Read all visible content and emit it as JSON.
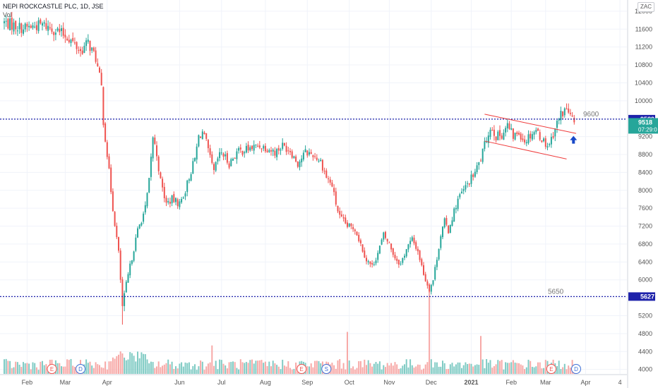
{
  "header": {
    "symbol_line": "NEPI ROCKCASTLE PLC, 1D, JSE",
    "volume_label": "Vol",
    "currency": "ZAC"
  },
  "colors": {
    "up": "#26a69a",
    "down": "#ef5350",
    "up_volume": "#80cbc4",
    "down_volume": "#f7a9a7",
    "level_line": "#1e22aa",
    "channel": "#ef3b3b",
    "arrow": "#1848c8"
  },
  "chart_data": {
    "type": "candlestick",
    "ylim": [
      3900,
      12250
    ],
    "y_ticks": [
      4000,
      4400,
      4800,
      5200,
      5600,
      6000,
      6400,
      6800,
      7200,
      7600,
      8000,
      8400,
      8800,
      9200,
      9600,
      10000,
      10400,
      10800,
      11200,
      11600,
      12000
    ],
    "x_tick_labels": [
      "Feb",
      "Mar",
      "Apr",
      "Jun",
      "Jul",
      "Aug",
      "Sep",
      "Oct",
      "Nov",
      "Dec",
      "2021",
      "Feb",
      "Mar",
      "Apr",
      "4"
    ],
    "price_path": [
      [
        0,
        11750
      ],
      [
        10,
        11620
      ],
      [
        20,
        11700
      ],
      [
        28,
        11560
      ],
      [
        34,
        11400
      ],
      [
        40,
        11100
      ],
      [
        44,
        11300
      ],
      [
        48,
        10950
      ],
      [
        51,
        10300
      ],
      [
        52,
        9550
      ],
      [
        54,
        8800
      ],
      [
        57,
        7600
      ],
      [
        60,
        6600
      ],
      [
        62,
        5400
      ],
      [
        64,
        5900
      ],
      [
        66,
        6300
      ],
      [
        70,
        7100
      ],
      [
        74,
        7600
      ],
      [
        76,
        8200
      ],
      [
        78,
        9200
      ],
      [
        80,
        8800
      ],
      [
        82,
        8200
      ],
      [
        85,
        7700
      ],
      [
        88,
        7800
      ],
      [
        92,
        7700
      ],
      [
        95,
        8000
      ],
      [
        97,
        8300
      ],
      [
        100,
        8700
      ],
      [
        102,
        9200
      ],
      [
        104,
        9300
      ],
      [
        106,
        9050
      ],
      [
        108,
        8700
      ],
      [
        110,
        8400
      ],
      [
        112,
        8700
      ],
      [
        114,
        8850
      ],
      [
        118,
        8600
      ],
      [
        122,
        8850
      ],
      [
        126,
        8900
      ],
      [
        130,
        8950
      ],
      [
        134,
        9000
      ],
      [
        138,
        8950
      ],
      [
        142,
        8850
      ],
      [
        146,
        9000
      ],
      [
        150,
        8900
      ],
      [
        154,
        8600
      ],
      [
        158,
        8850
      ],
      [
        162,
        8800
      ],
      [
        166,
        8650
      ],
      [
        169,
        8300
      ],
      [
        172,
        8100
      ],
      [
        174,
        7700
      ],
      [
        176,
        7400
      ],
      [
        180,
        7200
      ],
      [
        184,
        7150
      ],
      [
        187,
        6800
      ],
      [
        190,
        6450
      ],
      [
        193,
        6300
      ],
      [
        196,
        6600
      ],
      [
        199,
        7000
      ],
      [
        202,
        6800
      ],
      [
        205,
        6500
      ],
      [
        208,
        6350
      ],
      [
        211,
        6700
      ],
      [
        214,
        6900
      ],
      [
        217,
        6650
      ],
      [
        219,
        6300
      ],
      [
        221,
        6000
      ],
      [
        223,
        5800
      ],
      [
        225,
        6000
      ],
      [
        227,
        6500
      ],
      [
        229,
        7000
      ],
      [
        231,
        7300
      ],
      [
        233,
        7100
      ],
      [
        235,
        7400
      ],
      [
        238,
        7800
      ],
      [
        241,
        8000
      ],
      [
        244,
        8200
      ],
      [
        247,
        8400
      ],
      [
        250,
        8700
      ],
      [
        252,
        9000
      ],
      [
        254,
        9300
      ],
      [
        256,
        9400
      ],
      [
        258,
        9200
      ],
      [
        261,
        9250
      ],
      [
        264,
        9450
      ],
      [
        267,
        9200
      ],
      [
        270,
        9300
      ],
      [
        273,
        9100
      ],
      [
        276,
        9250
      ],
      [
        279,
        9350
      ],
      [
        282,
        9150
      ],
      [
        285,
        9000
      ],
      [
        287,
        9150
      ],
      [
        289,
        9400
      ],
      [
        292,
        9700
      ],
      [
        295,
        9820
      ],
      [
        297,
        9650
      ],
      [
        299,
        9518
      ]
    ],
    "levels": [
      {
        "value": 9589,
        "label": "9600",
        "badge": "9589"
      },
      {
        "value": 5627,
        "label": "5650",
        "badge": "5627"
      }
    ],
    "last_price": {
      "value": 9518,
      "badge": "9518",
      "countdown": "07:29:0"
    },
    "channel": {
      "upper": {
        "x1": 252,
        "y1": 9700,
        "x2": 300,
        "y2": 9270
      },
      "lower": {
        "x1": 252,
        "y1": 9100,
        "x2": 295,
        "y2": 8700
      }
    },
    "earnings_markers": [
      {
        "label": "E",
        "x": 25
      },
      {
        "label": "D",
        "x": 40
      },
      {
        "label": "E",
        "x": 156
      },
      {
        "label": "S",
        "x": 169
      },
      {
        "label": "E",
        "x": 287
      },
      {
        "label": "D",
        "x": 300
      }
    ],
    "volume": {
      "base_max": 480,
      "spikes": [
        [
          45,
          180
        ],
        [
          109,
          420
        ],
        [
          180,
          620
        ],
        [
          223,
          1220
        ],
        [
          250,
          560
        ]
      ]
    }
  }
}
